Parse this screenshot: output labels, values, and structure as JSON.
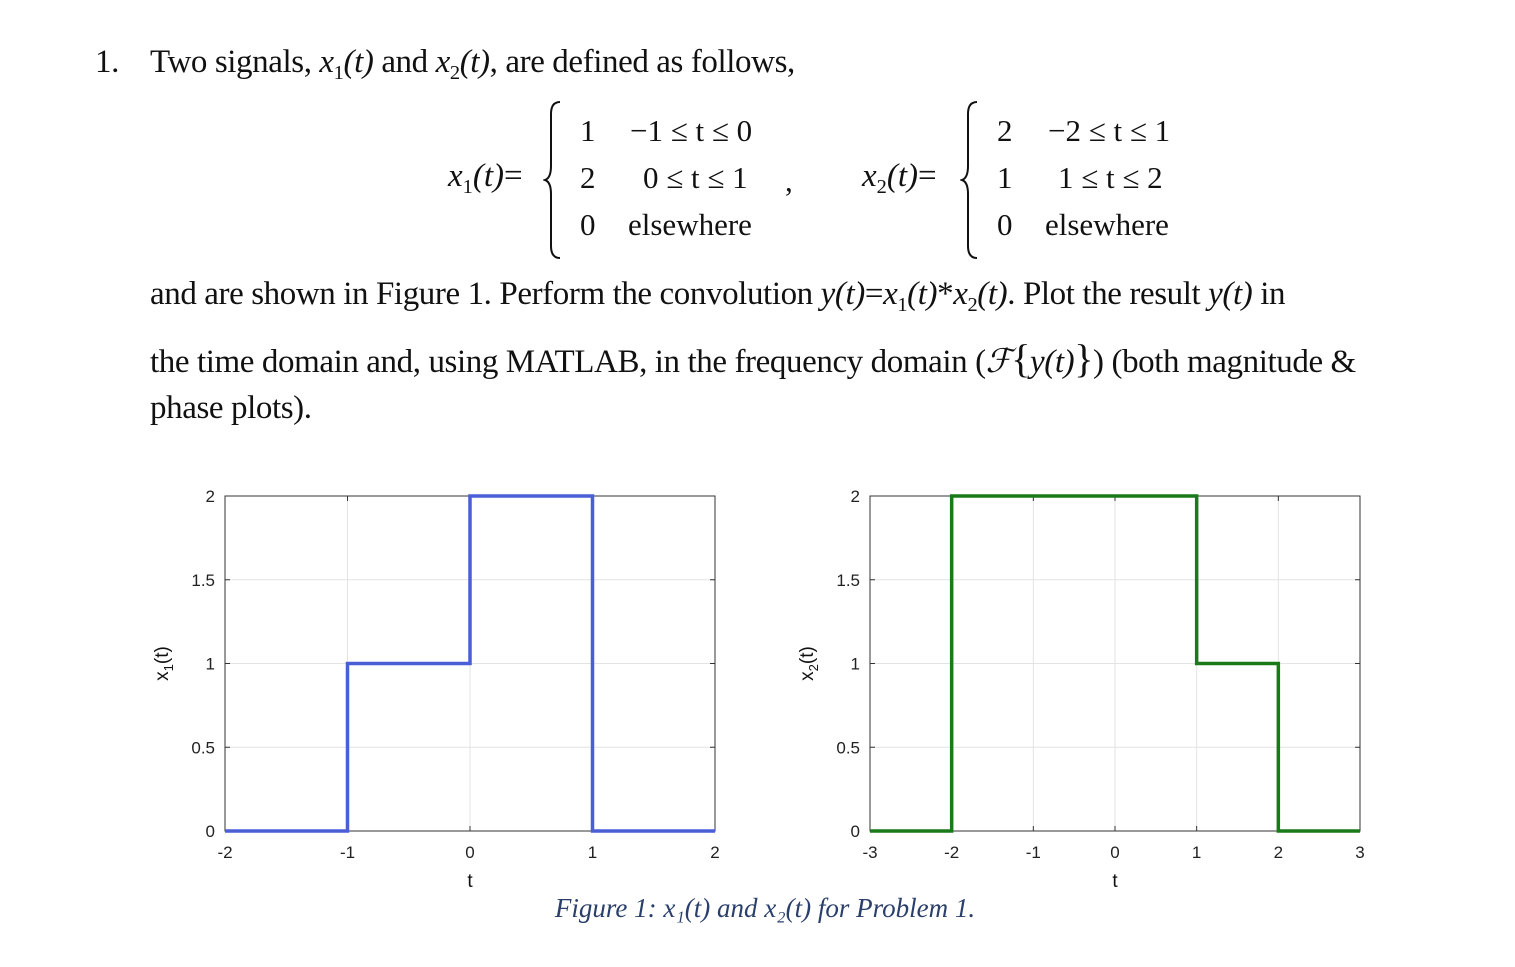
{
  "problem": {
    "number": "1.",
    "intro_a": "Two signals,",
    "intro_b": "and",
    "intro_c": ", are defined as follows,",
    "x1_sym": "x",
    "x2_sym": "x",
    "sub1": "1",
    "sub2": "2",
    "arg_t": "(t)",
    "eq_sign": "=",
    "line2_a": "and are shown in Figure 1.  Perform the convolution",
    "conv_expr_y": "y(t)",
    "conv_expr_eq": "=",
    "conv_star": "*",
    "line2_b": ".  Plot the result",
    "line2_c": "in",
    "line3_a": "the time domain and, using MATLAB, in the frequency domain (",
    "fourier": "ℱ",
    "brace_l": "{",
    "brace_r": "}",
    "line3_b": ") (both magnitude &",
    "line4": "phase plots)."
  },
  "x1_def": {
    "rows": [
      {
        "value": "1",
        "cond": "−1 ≤ t ≤ 0"
      },
      {
        "value": "2",
        "cond": "0 ≤ t ≤ 1"
      },
      {
        "value": "0",
        "cond": "elsewhere"
      }
    ],
    "separator": ","
  },
  "x2_def": {
    "rows": [
      {
        "value": "2",
        "cond": "−2 ≤ t ≤ 1"
      },
      {
        "value": "1",
        "cond": "1 ≤ t ≤ 2"
      },
      {
        "value": "0",
        "cond": "elsewhere"
      }
    ]
  },
  "chart_data": [
    {
      "type": "line",
      "xlabel": "t",
      "ylabel": "x1(t)",
      "x": [
        -2,
        -1,
        -1,
        0,
        0,
        1,
        1,
        2
      ],
      "y": [
        0,
        0,
        1,
        1,
        2,
        2,
        0,
        0
      ],
      "xlim": [
        -2,
        2
      ],
      "ylim": [
        0,
        2
      ],
      "xticks": [
        -2,
        -1,
        0,
        1,
        2
      ],
      "yticks": [
        0,
        0.5,
        1,
        1.5,
        2
      ],
      "grid": true,
      "color": "#4a5fd6"
    },
    {
      "type": "line",
      "xlabel": "t",
      "ylabel": "x2(t)",
      "x": [
        -3,
        -2,
        -2,
        1,
        1,
        2,
        2,
        3
      ],
      "y": [
        0,
        0,
        2,
        2,
        1,
        1,
        0,
        0
      ],
      "xlim": [
        -3,
        3
      ],
      "ylim": [
        0,
        2
      ],
      "xticks": [
        -3,
        -2,
        -1,
        0,
        1,
        2,
        3
      ],
      "yticks": [
        0,
        0.5,
        1,
        1.5,
        2
      ],
      "grid": true,
      "color": "#1a7a1a"
    }
  ],
  "caption": "Figure 1: x₁(t) and x₂(t) for Problem 1."
}
